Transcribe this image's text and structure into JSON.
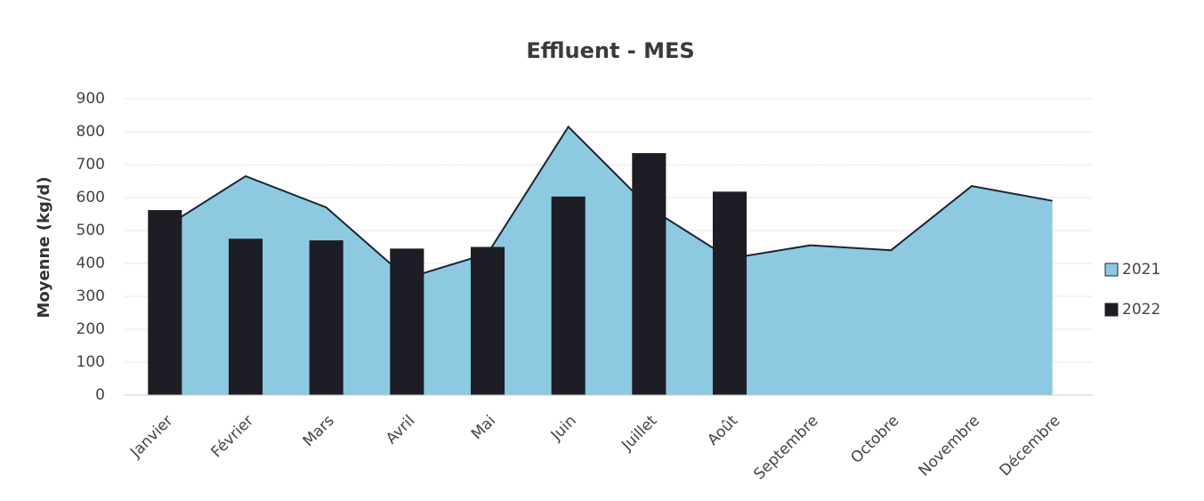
{
  "chart_data": {
    "type": "combo",
    "title": "Effluent - MES",
    "y_label": "Moyenne (kg/d)",
    "categories": [
      "Janvier",
      "Février",
      "Mars",
      "Avril",
      "Mai",
      "Juin",
      "Juillet",
      "Août",
      "Septembre",
      "Octobre",
      "Novembre",
      "Décembre"
    ],
    "series": [
      {
        "name": "2021",
        "type": "area",
        "color": "#8ec9e2",
        "line_color": "#1a2530",
        "values": [
          510,
          665,
          570,
          355,
          430,
          815,
          570,
          415,
          455,
          440,
          635,
          590
        ]
      },
      {
        "name": "2022",
        "type": "bar",
        "color": "#1d1d26",
        "values": [
          562,
          475,
          470,
          445,
          450,
          603,
          735,
          618,
          null,
          null,
          null,
          null
        ]
      }
    ],
    "ylim": [
      0,
      900
    ],
    "yticks": [
      0,
      100,
      200,
      300,
      400,
      500,
      600,
      700,
      800,
      900
    ],
    "grid": true,
    "legend": "right"
  }
}
